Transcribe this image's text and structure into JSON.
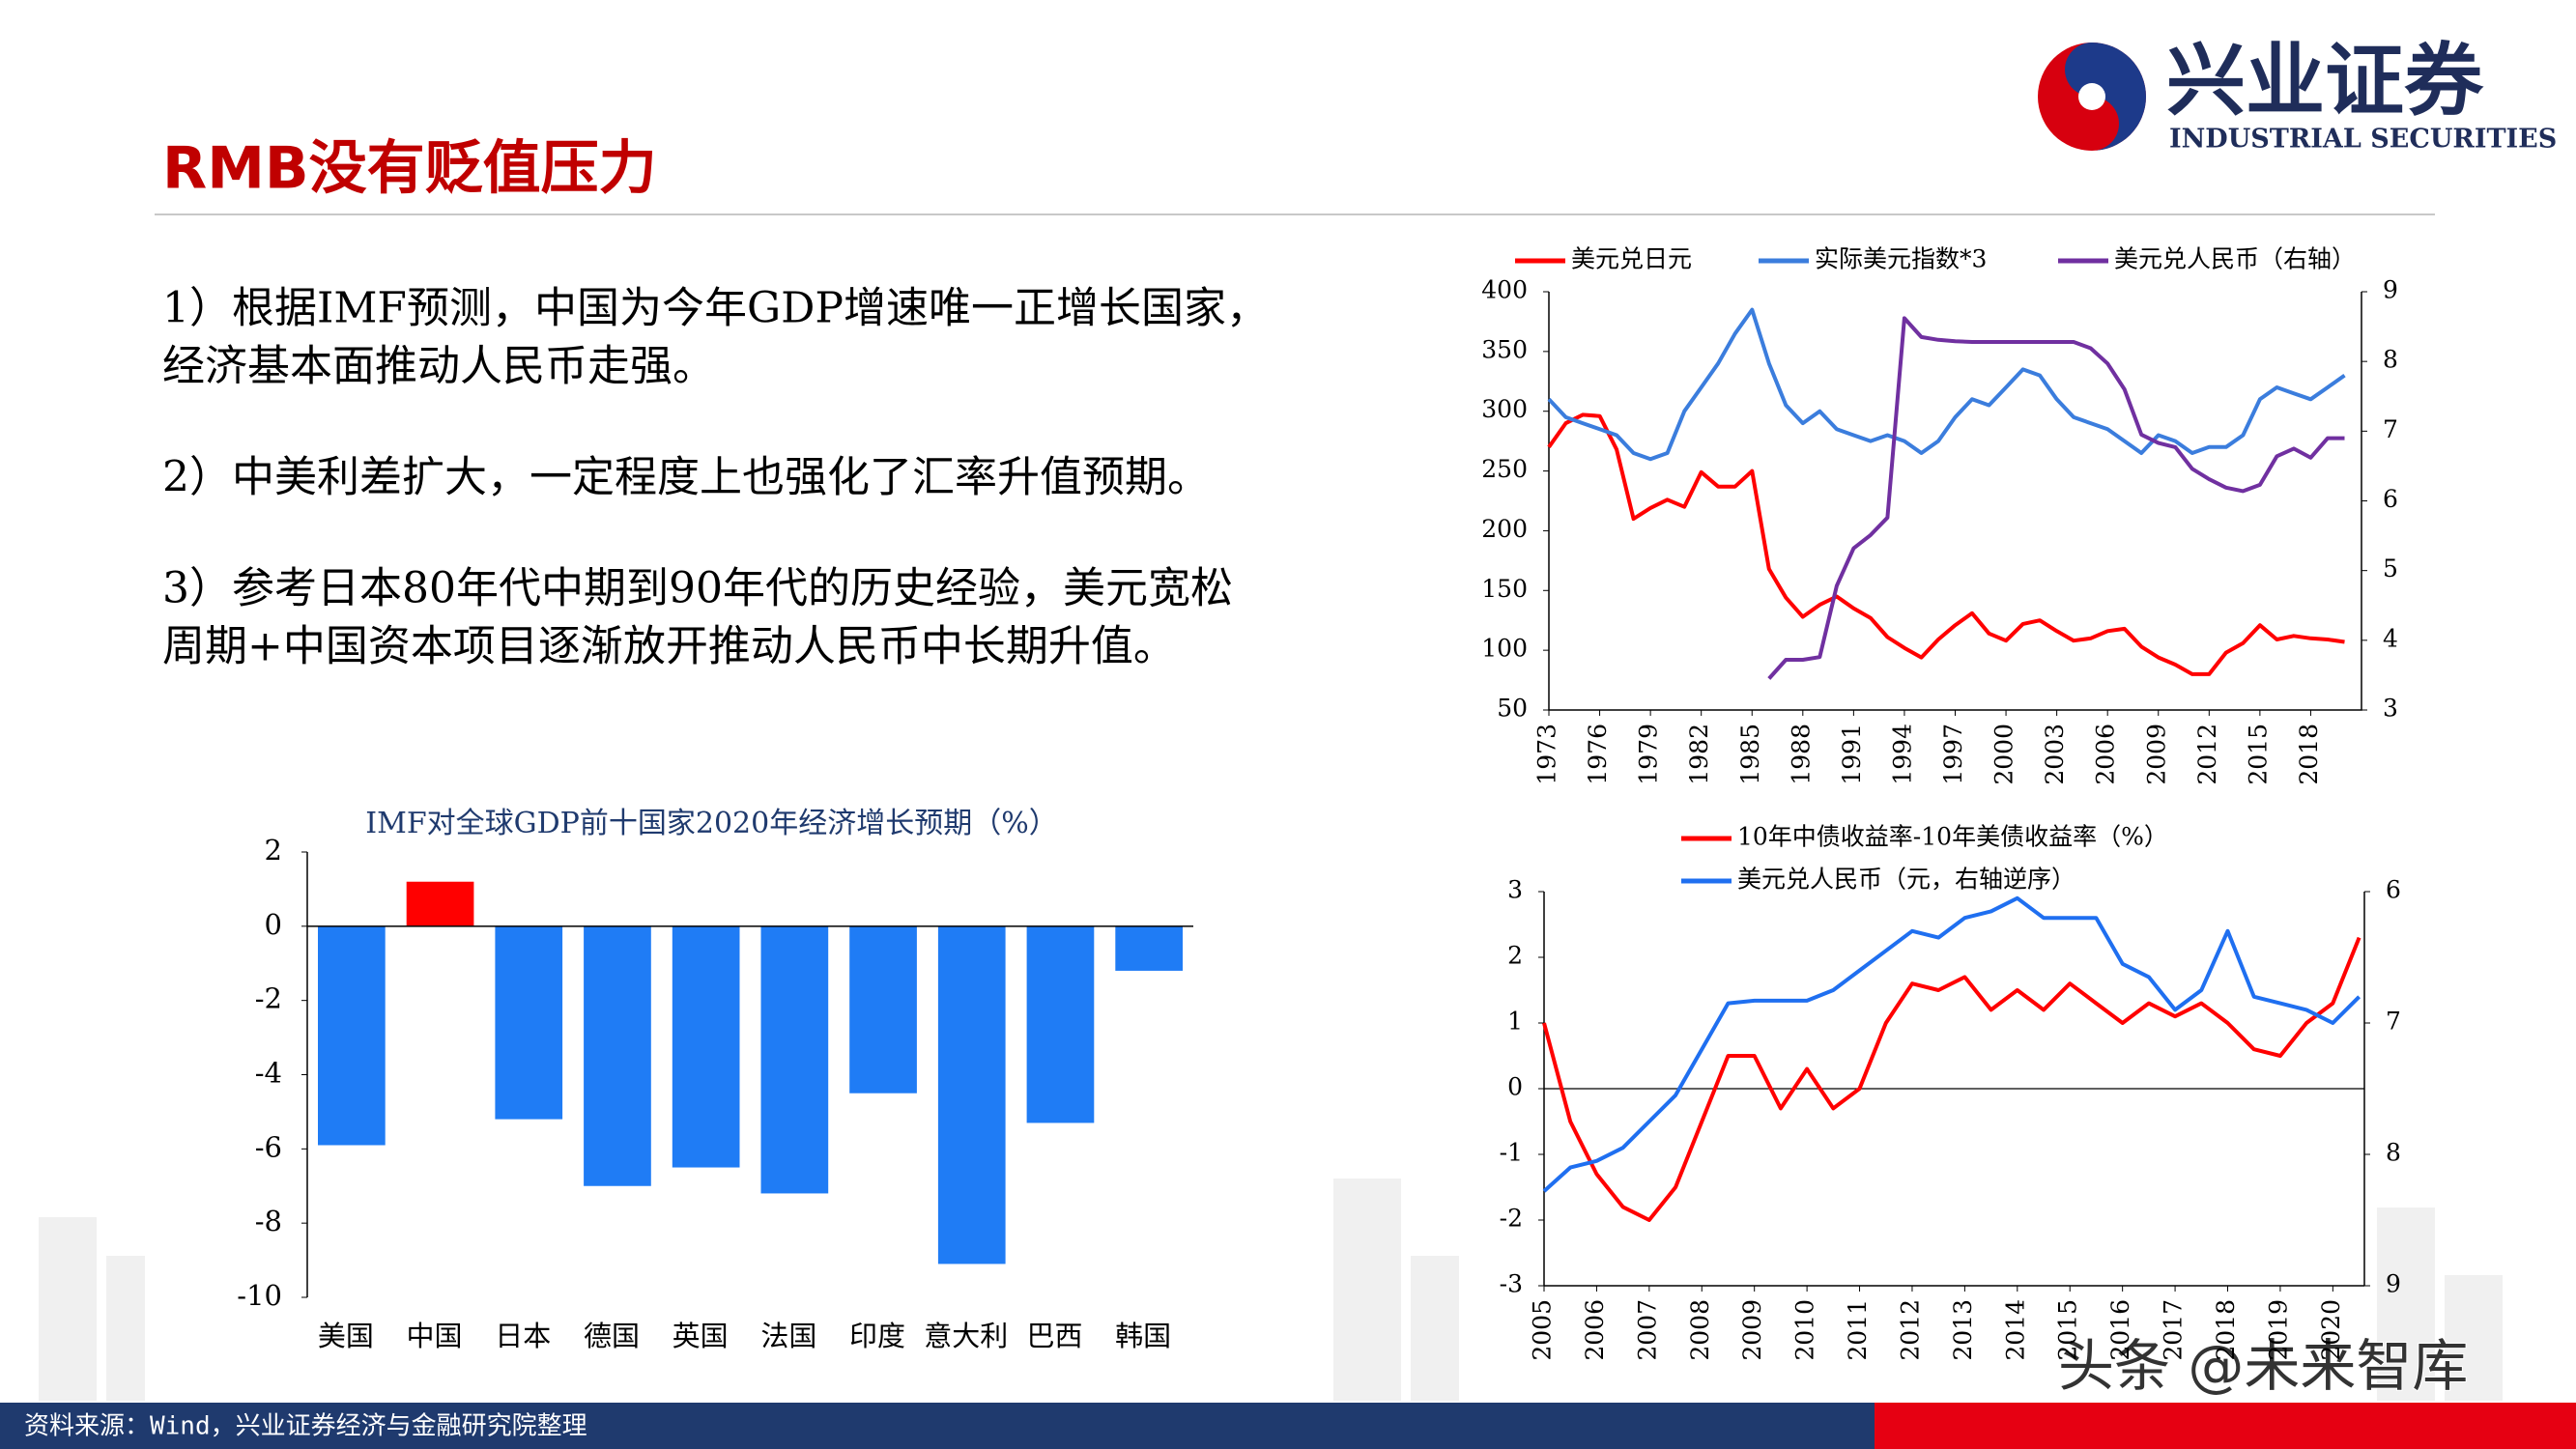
{
  "header": {
    "title": "RMB没有贬值压力",
    "logo_name": "兴业证券",
    "logo_subtitle": "INDUSTRIAL SECURITIES"
  },
  "body": {
    "paragraphs": [
      [
        "1）根据IMF预测，中国为今年GDP增速唯一正增长国家，",
        "经济基本面推动人民币走强。"
      ],
      [
        "2）中美利差扩大，一定程度上也强化了汇率升值预期。"
      ],
      [
        "3）参考日本80年代中期到90年代的历史经验，美元宽松",
        "周期+中国资本项目逐渐放开推动人民币中长期升值。"
      ]
    ]
  },
  "footer": {
    "source": "资料来源：Wind，兴业证券经济与金融研究院整理",
    "watermark": "头条 @未来智库"
  },
  "chart_data": [
    {
      "type": "line",
      "x": [
        1973,
        1974,
        1975,
        1976,
        1977,
        1978,
        1979,
        1980,
        1981,
        1982,
        1983,
        1984,
        1985,
        1986,
        1987,
        1988,
        1989,
        1990,
        1991,
        1992,
        1993,
        1994,
        1995,
        1996,
        1997,
        1998,
        1999,
        2000,
        2001,
        2002,
        2003,
        2004,
        2005,
        2006,
        2007,
        2008,
        2009,
        2010,
        2011,
        2012,
        2013,
        2014,
        2015,
        2016,
        2017,
        2018,
        2019,
        2020
      ],
      "xlim": [
        1973,
        2021
      ],
      "xticks": [
        1973,
        1976,
        1979,
        1982,
        1985,
        1988,
        1991,
        1994,
        1997,
        2000,
        2003,
        2006,
        2009,
        2012,
        2015,
        2018
      ],
      "ylim": [
        50,
        400
      ],
      "yticks": [
        50,
        100,
        150,
        200,
        250,
        300,
        350,
        400
      ],
      "y2lim": [
        3,
        9
      ],
      "y2ticks": [
        3,
        4,
        5,
        6,
        7,
        8,
        9
      ],
      "series": [
        {
          "name": "美元兑日元",
          "color": "#ff0000",
          "values": [
            270,
            290,
            297,
            296,
            268,
            210,
            219,
            226,
            220,
            249,
            237,
            237,
            250,
            168,
            144,
            128,
            138,
            145,
            135,
            127,
            111,
            102,
            94,
            109,
            121,
            131,
            114,
            108,
            122,
            125,
            116,
            108,
            110,
            116,
            118,
            103,
            94,
            88,
            80,
            80,
            98,
            106,
            121,
            109,
            112,
            110,
            109,
            107
          ]
        },
        {
          "name": "实际美元指数*3",
          "color": "#3b7ddd",
          "values": [
            310,
            295,
            290,
            285,
            280,
            265,
            260,
            265,
            300,
            320,
            340,
            365,
            385,
            340,
            305,
            290,
            300,
            285,
            280,
            275,
            280,
            275,
            265,
            275,
            295,
            310,
            305,
            320,
            335,
            330,
            310,
            295,
            290,
            285,
            275,
            265,
            280,
            275,
            265,
            270,
            270,
            280,
            310,
            320,
            315,
            310,
            320,
            330
          ]
        },
        {
          "name": "美元兑人民币（右轴）",
          "color": "#7030a0",
          "axis": "y2",
          "values": [
            null,
            null,
            null,
            null,
            null,
            null,
            null,
            null,
            null,
            null,
            null,
            null,
            null,
            3.45,
            3.72,
            3.72,
            3.76,
            4.78,
            5.32,
            5.51,
            5.76,
            8.62,
            8.35,
            8.31,
            8.29,
            8.28,
            8.28,
            8.28,
            8.28,
            8.28,
            8.28,
            8.28,
            8.19,
            7.97,
            7.6,
            6.95,
            6.83,
            6.77,
            6.46,
            6.31,
            6.19,
            6.14,
            6.23,
            6.64,
            6.75,
            6.62,
            6.9,
            6.9
          ]
        }
      ]
    },
    {
      "type": "bar",
      "title": "IMF对全球GDP前十国家2020年经济增长预期（%）",
      "categories": [
        "美国",
        "中国",
        "日本",
        "德国",
        "英国",
        "法国",
        "印度",
        "意大利",
        "巴西",
        "韩国"
      ],
      "values": [
        -5.9,
        1.2,
        -5.2,
        -7.0,
        -6.5,
        -7.2,
        -4.5,
        -9.1,
        -5.3,
        -1.2
      ],
      "colors": [
        "#1f7cf5",
        "#ff0000",
        "#1f7cf5",
        "#1f7cf5",
        "#1f7cf5",
        "#1f7cf5",
        "#1f7cf5",
        "#1f7cf5",
        "#1f7cf5",
        "#1f7cf5"
      ],
      "ylim": [
        -10,
        2
      ],
      "yticks": [
        -10,
        -8,
        -6,
        -4,
        -2,
        0,
        2
      ]
    },
    {
      "type": "line",
      "x": [
        2005,
        2005.5,
        2006,
        2006.5,
        2007,
        2007.5,
        2008,
        2008.5,
        2009,
        2009.5,
        2010,
        2010.5,
        2011,
        2011.5,
        2012,
        2012.5,
        2013,
        2013.5,
        2014,
        2014.5,
        2015,
        2015.5,
        2016,
        2016.5,
        2017,
        2017.5,
        2018,
        2018.5,
        2019,
        2019.5,
        2020,
        2020.5
      ],
      "xlim": [
        2005,
        2020.6
      ],
      "xticks": [
        2005,
        2006,
        2007,
        2008,
        2009,
        2010,
        2011,
        2012,
        2013,
        2014,
        2015,
        2016,
        2017,
        2018,
        2019,
        2020
      ],
      "ylim": [
        -3,
        3
      ],
      "yticks": [
        -3,
        -2,
        -1,
        0,
        1,
        2,
        3
      ],
      "y2lim": [
        9,
        6
      ],
      "y2ticks": [
        9,
        8,
        7,
        6
      ],
      "series": [
        {
          "name": "10年中债收益率-10年美债收益率（%）",
          "color": "#ff0000",
          "values": [
            1.0,
            -0.5,
            -1.3,
            -1.8,
            -2.0,
            -1.5,
            -0.5,
            0.5,
            0.5,
            -0.3,
            0.3,
            -0.3,
            0.0,
            1.0,
            1.6,
            1.5,
            1.7,
            1.2,
            1.5,
            1.2,
            1.6,
            1.3,
            1.0,
            1.3,
            1.1,
            1.3,
            1.0,
            0.6,
            0.5,
            1.0,
            1.3,
            2.3
          ]
        },
        {
          "name": "美元兑人民币（元，右轴逆序）",
          "color": "#1f6ff0",
          "axis": "y2",
          "values": [
            8.28,
            8.1,
            8.05,
            7.95,
            7.75,
            7.55,
            7.2,
            6.85,
            6.83,
            6.83,
            6.83,
            6.75,
            6.6,
            6.45,
            6.3,
            6.35,
            6.2,
            6.15,
            6.05,
            6.2,
            6.2,
            6.2,
            6.55,
            6.65,
            6.9,
            6.75,
            6.3,
            6.8,
            6.85,
            6.9,
            7.0,
            6.8
          ]
        }
      ]
    }
  ]
}
